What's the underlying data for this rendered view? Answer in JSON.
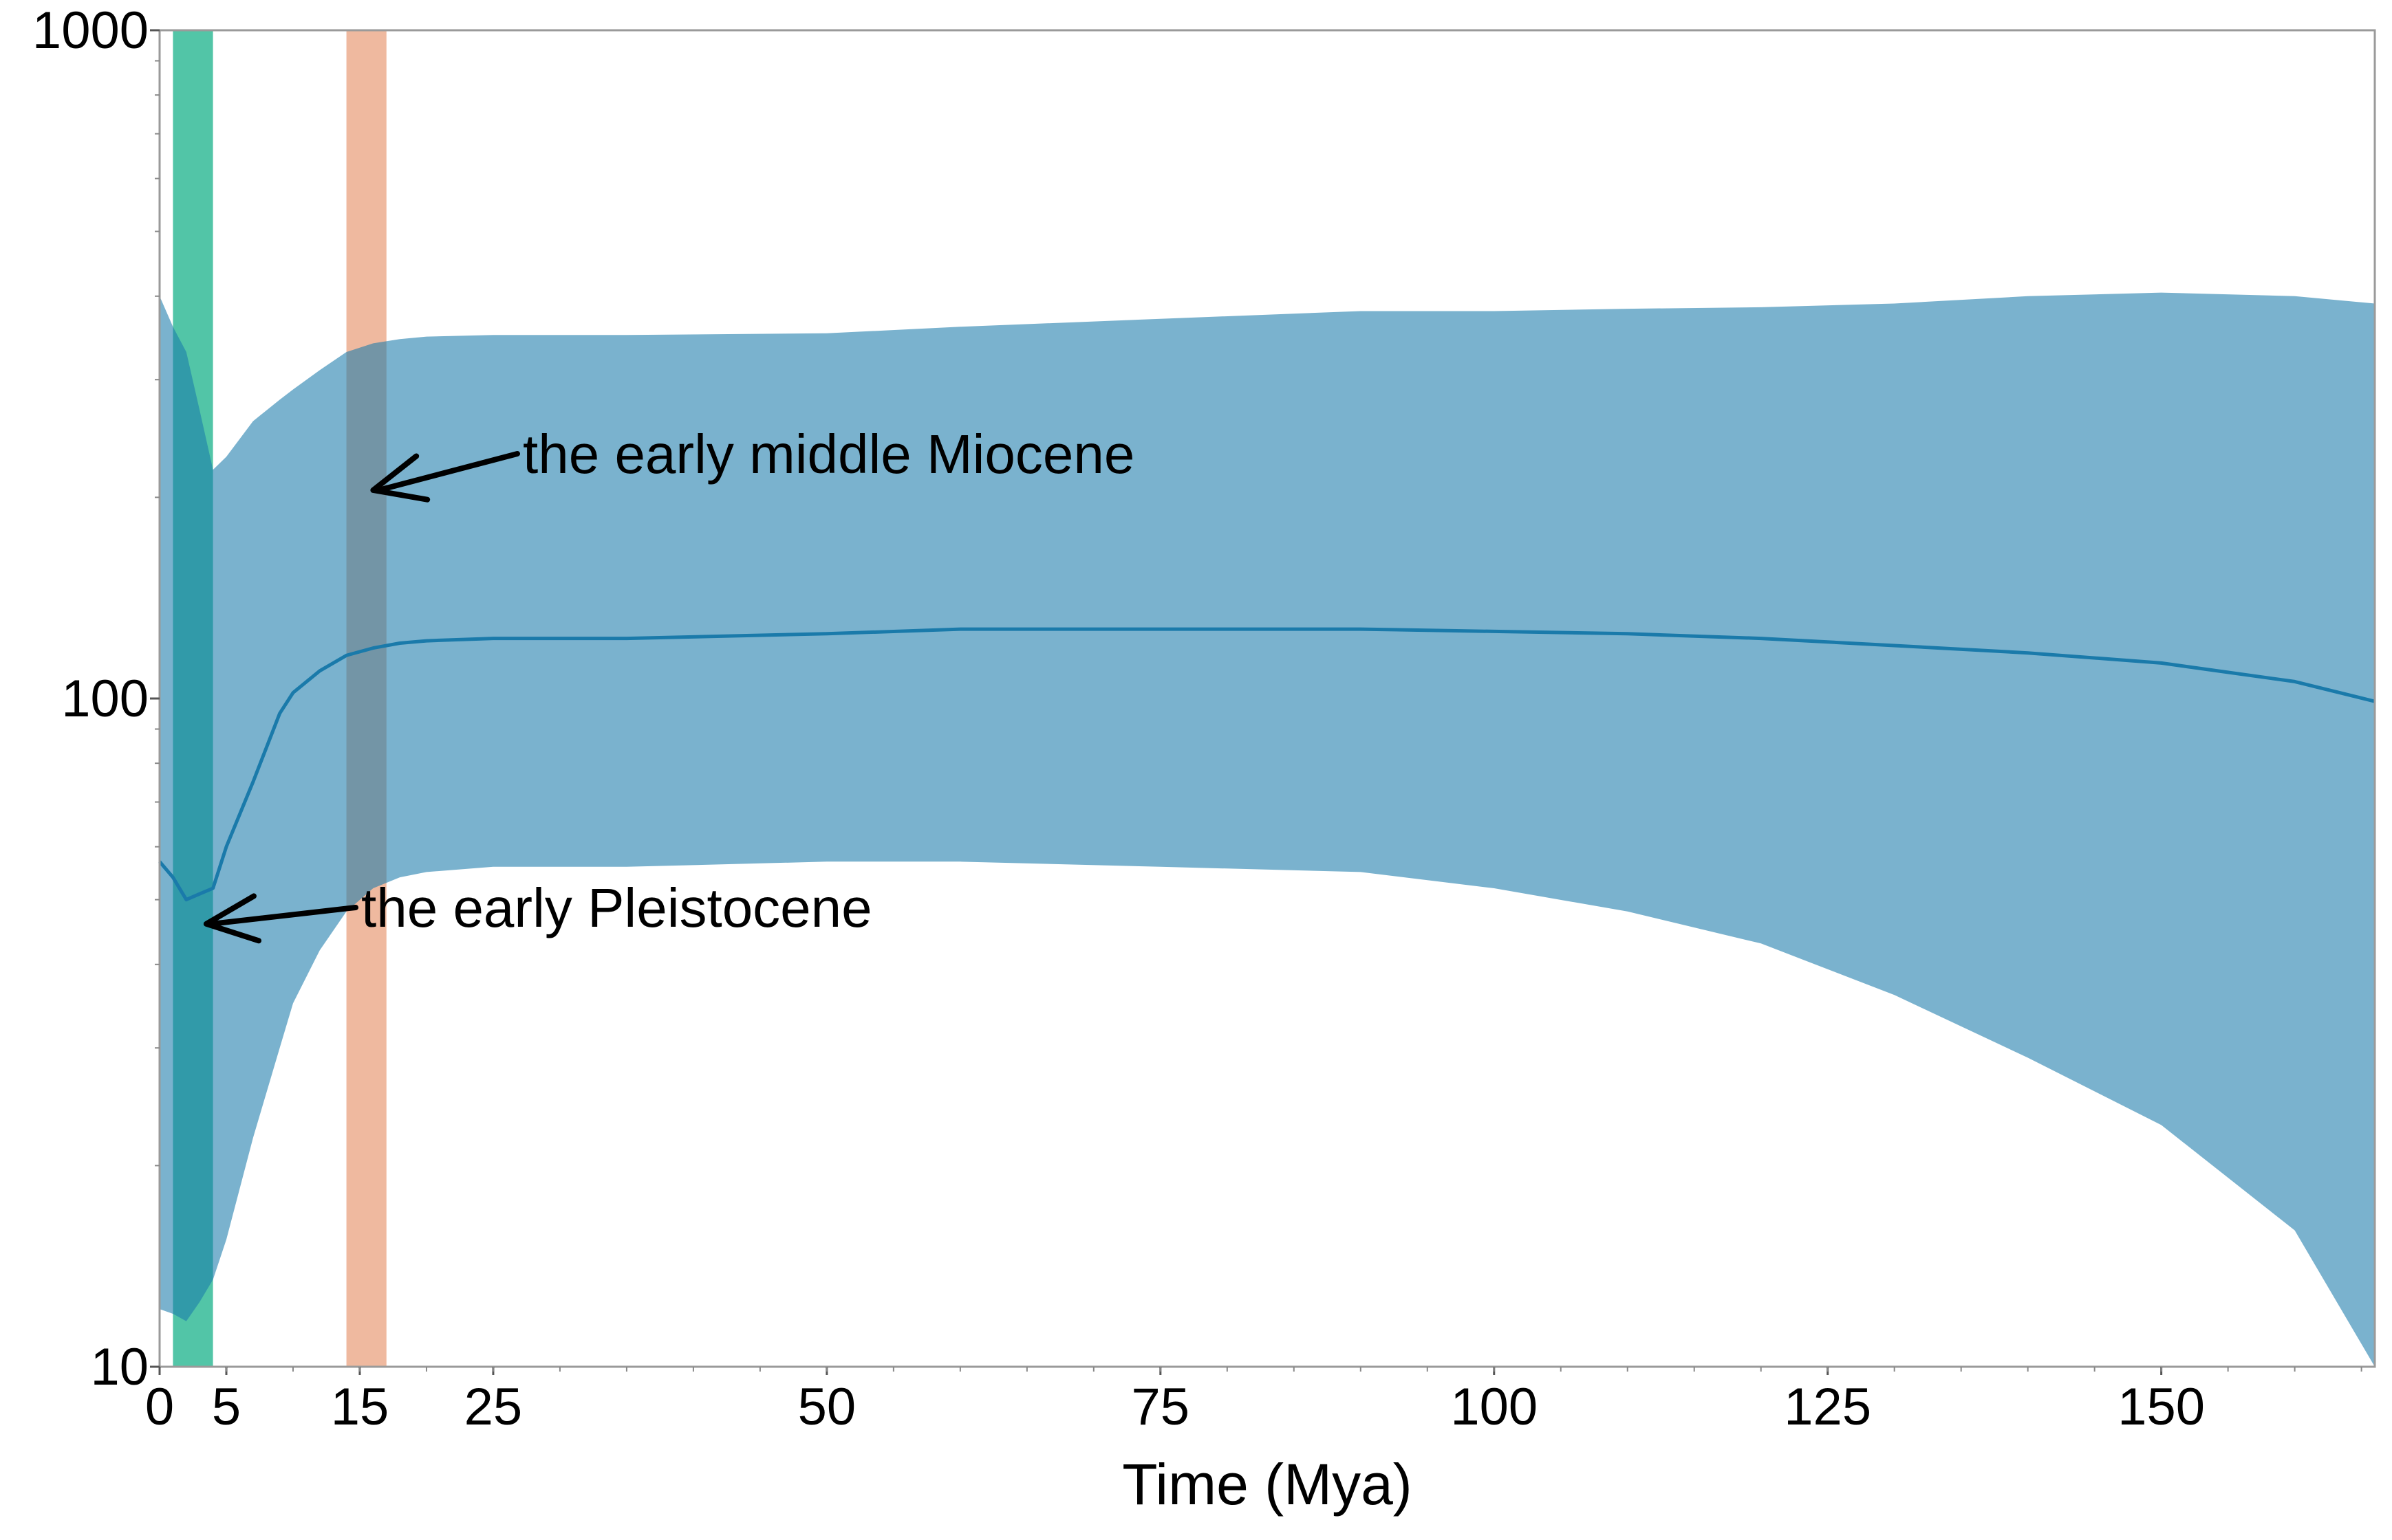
{
  "chart_data": {
    "type": "area",
    "title": "",
    "xlabel": "Time (Mya)",
    "ylabel": "",
    "xlim": [
      0,
      166
    ],
    "ylim": [
      10,
      1000
    ],
    "y_scale": "log",
    "grid": false,
    "x_ticks": [
      {
        "value": 0,
        "label": "0"
      },
      {
        "value": 5,
        "label": "5"
      },
      {
        "value": 15,
        "label": "15"
      },
      {
        "value": 25,
        "label": "25"
      },
      {
        "value": 50,
        "label": "50"
      },
      {
        "value": 75,
        "label": "75"
      },
      {
        "value": 100,
        "label": "100"
      },
      {
        "value": 125,
        "label": "125"
      },
      {
        "value": 150,
        "label": "150"
      }
    ],
    "y_ticks": [
      {
        "value": 10,
        "label": "10"
      },
      {
        "value": 100,
        "label": "100"
      },
      {
        "value": 1000,
        "label": "1000"
      }
    ],
    "series": [
      {
        "color": "#1a7aaa",
        "x": [
          0,
          1,
          2,
          3,
          4,
          5,
          7,
          9,
          10,
          12,
          14,
          16,
          18,
          20,
          25,
          35,
          50,
          60,
          75,
          90,
          100,
          110,
          120,
          130,
          140,
          150,
          160,
          166
        ],
        "median": [
          57,
          54,
          50,
          51,
          52,
          60,
          75,
          95,
          102,
          110,
          116,
          119,
          121,
          122,
          123,
          123,
          125,
          127,
          127,
          127,
          126,
          125,
          123,
          120,
          117,
          113,
          106,
          99
        ],
        "upper": [
          400,
          360,
          330,
          270,
          220,
          230,
          260,
          280,
          290,
          310,
          330,
          340,
          345,
          348,
          350,
          350,
          352,
          360,
          370,
          380,
          380,
          383,
          385,
          390,
          400,
          405,
          400,
          390
        ],
        "lower": [
          12.2,
          12,
          11.7,
          12.5,
          13.5,
          15.5,
          22,
          30,
          35,
          42,
          48,
          52,
          54,
          55,
          56,
          56,
          57,
          57,
          56,
          55,
          52,
          48,
          43,
          36,
          29,
          23,
          16,
          10
        ]
      }
    ],
    "shaded_periods": [
      {
        "x_start": 1,
        "x_end": 4,
        "color": "#00a97e"
      },
      {
        "x_start": 14,
        "x_end": 17,
        "color": "#e89872"
      }
    ],
    "annotations": [
      {
        "text": "the early middle Miocene",
        "point_x": 16,
        "point_y": 205
      },
      {
        "text": "the early Pleistocene",
        "point_x": 3.5,
        "point_y": 46
      }
    ]
  }
}
